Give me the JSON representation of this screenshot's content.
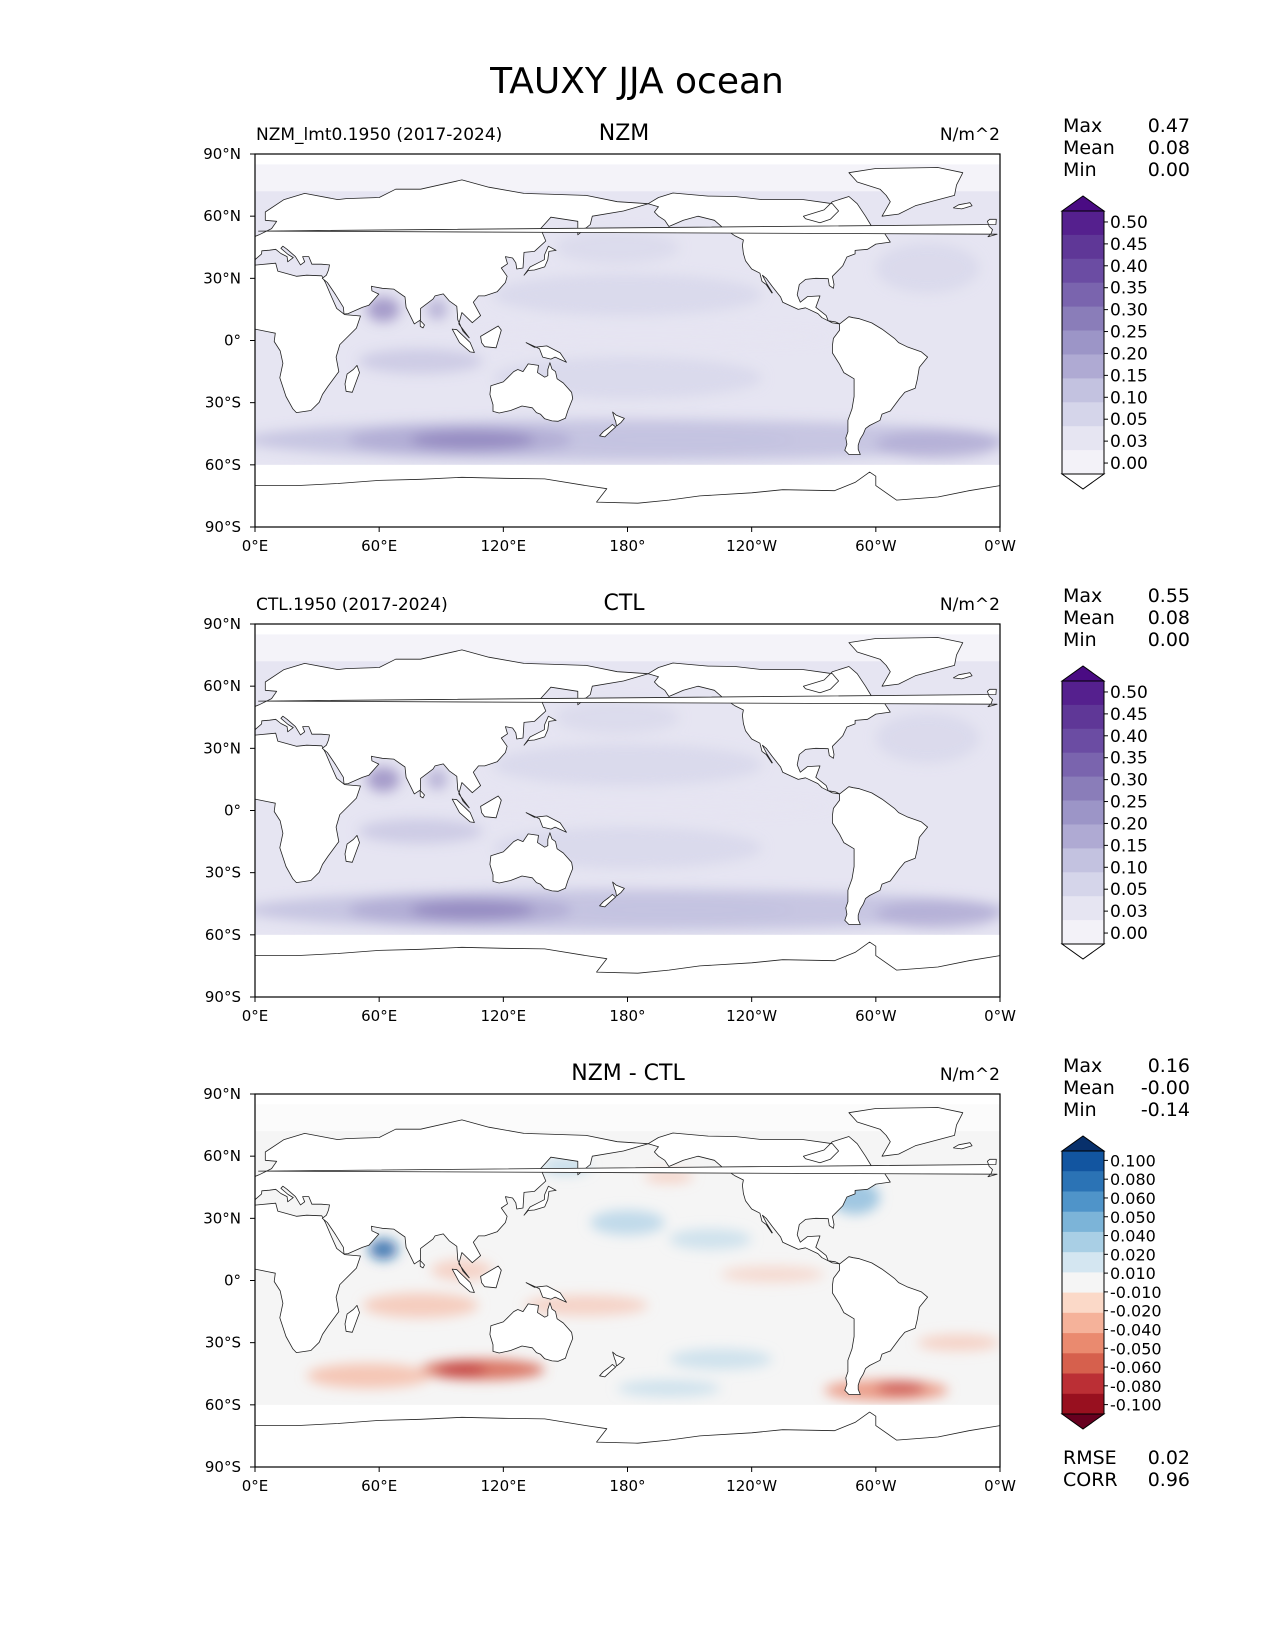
{
  "chart_data": {
    "type": "map-contour",
    "title": "TAUXY JJA ocean",
    "panels": [
      {
        "name": "nzm",
        "left_label": "NZM_lmt0.1950 (2017-2024)",
        "center_label": "NZM",
        "units": "N/m^2",
        "stats": [
          [
            "Max",
            "0.47"
          ],
          [
            "Mean",
            "0.08"
          ],
          [
            "Min",
            "0.00"
          ]
        ],
        "colorbar": {
          "levels": [
            "0.50",
            "0.45",
            "0.40",
            "0.35",
            "0.30",
            "0.25",
            "0.20",
            "0.15",
            "0.10",
            "0.05",
            "0.03",
            "0.00"
          ],
          "colors": [
            "#4a0b83",
            "#55208e",
            "#5f3797",
            "#6b4ca3",
            "#7a64ae",
            "#8a7db9",
            "#9c95c7",
            "#afaad3",
            "#c3c2e0",
            "#d5d5ea",
            "#e6e5f2",
            "#f3f2f8",
            "#ffffff"
          ]
        }
      },
      {
        "name": "ctl",
        "left_label": "CTL.1950 (2017-2024)",
        "center_label": "CTL",
        "units": "N/m^2",
        "stats": [
          [
            "Max",
            "0.55"
          ],
          [
            "Mean",
            "0.08"
          ],
          [
            "Min",
            "0.00"
          ]
        ],
        "colorbar": {
          "levels": [
            "0.50",
            "0.45",
            "0.40",
            "0.35",
            "0.30",
            "0.25",
            "0.20",
            "0.15",
            "0.10",
            "0.05",
            "0.03",
            "0.00"
          ],
          "colors": [
            "#4a0b83",
            "#55208e",
            "#5f3797",
            "#6b4ca3",
            "#7a64ae",
            "#8a7db9",
            "#9c95c7",
            "#afaad3",
            "#c3c2e0",
            "#d5d5ea",
            "#e6e5f2",
            "#f3f2f8",
            "#ffffff"
          ]
        }
      },
      {
        "name": "diff",
        "left_label": "",
        "center_label": "NZM - CTL",
        "units": "N/m^2",
        "stats": [
          [
            "Max",
            "0.16"
          ],
          [
            "Mean",
            "-0.00"
          ],
          [
            "Min",
            "-0.14"
          ]
        ],
        "metrics": [
          [
            "RMSE",
            "0.02"
          ],
          [
            "CORR",
            "0.96"
          ]
        ],
        "colorbar": {
          "levels": [
            "0.100",
            "0.080",
            "0.060",
            "0.050",
            "0.040",
            "0.020",
            "0.010",
            "-0.010",
            "-0.020",
            "-0.040",
            "-0.050",
            "-0.060",
            "-0.080",
            "-0.100"
          ],
          "colors": [
            "#08306b",
            "#1255a0",
            "#2b73b5",
            "#4f94c9",
            "#7cb4d8",
            "#a9cfe5",
            "#d4e6f1",
            "#f5f5f5",
            "#fbd9c8",
            "#f5b29a",
            "#ea8a6f",
            "#d6604d",
            "#bb2f35",
            "#98101f",
            "#67001f"
          ]
        }
      }
    ],
    "x_axis": {
      "ticks": [
        "0°E",
        "60°E",
        "120°E",
        "180°",
        "120°W",
        "60°W",
        "0°W"
      ],
      "range": [
        0,
        360
      ]
    },
    "y_axis": {
      "ticks": [
        "90°N",
        "60°N",
        "30°N",
        "0°",
        "30°S",
        "60°S",
        "90°S"
      ],
      "range": [
        90,
        -90
      ]
    }
  }
}
